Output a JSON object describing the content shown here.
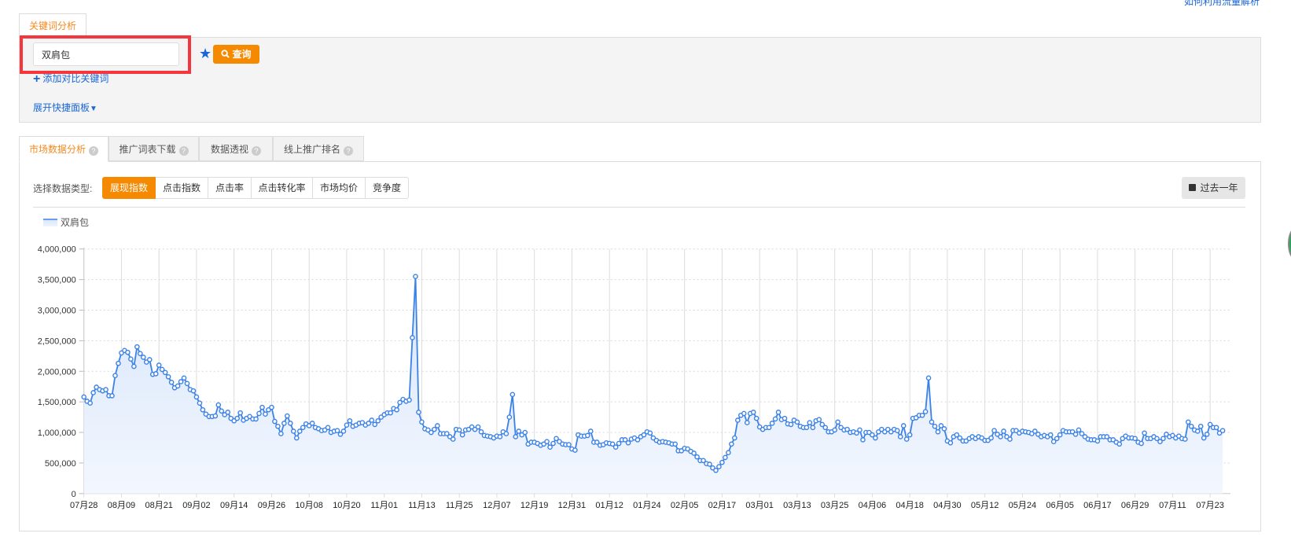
{
  "top_link": "如何利用流量解析",
  "keyword_tab": "关键词分析",
  "search": {
    "value": "双肩包",
    "query_label": "查询",
    "add_compare": "添加对比关键词",
    "expand_panel": "展开快捷面板"
  },
  "tabs": [
    {
      "label": "市场数据分析",
      "active": true
    },
    {
      "label": "推广词表下载",
      "active": false
    },
    {
      "label": "数据透视",
      "active": false
    },
    {
      "label": "线上推广排名",
      "active": false
    }
  ],
  "data_type": {
    "label": "选择数据类型:",
    "options": [
      "展现指数",
      "点击指数",
      "点击率",
      "点击转化率",
      "市场均价",
      "竞争度"
    ],
    "selected": "展现指数"
  },
  "range_button": "过去一年",
  "colors": {
    "accent": "#f58a00",
    "link": "#1a66d6",
    "series": "#3b82e8",
    "highlight_box": "#f5363c"
  },
  "chart_data": {
    "type": "area",
    "legend": [
      "双肩包"
    ],
    "legend_position": "top-left",
    "grid": true,
    "ylim": [
      0,
      4000000
    ],
    "yticks": [
      "0",
      "500,000",
      "1,000,000",
      "1,500,000",
      "2,000,000",
      "2,500,000",
      "3,000,000",
      "3,500,000",
      "4,000,000"
    ],
    "xticks": [
      "07月28",
      "08月09",
      "08月21",
      "09月02",
      "09月14",
      "09月26",
      "10月08",
      "10月20",
      "11月01",
      "11月13",
      "11月25",
      "12月07",
      "12月19",
      "12月31",
      "01月12",
      "01月24",
      "02月05",
      "02月17",
      "03月01",
      "03月13",
      "03月25",
      "04月06",
      "04月18",
      "04月30",
      "05月12",
      "05月24",
      "06月05",
      "06月17",
      "06月29",
      "07月11",
      "07月23"
    ],
    "series": [
      {
        "name": "双肩包",
        "values": [
          1580000,
          1510000,
          1480000,
          1650000,
          1740000,
          1700000,
          1680000,
          1700000,
          1600000,
          1600000,
          1930000,
          2130000,
          2300000,
          2340000,
          2310000,
          2200000,
          2080000,
          2400000,
          2290000,
          2230000,
          2150000,
          2190000,
          1950000,
          1960000,
          2100000,
          2030000,
          1980000,
          1910000,
          1820000,
          1730000,
          1760000,
          1830000,
          1890000,
          1800000,
          1700000,
          1680000,
          1580000,
          1480000,
          1370000,
          1300000,
          1260000,
          1260000,
          1270000,
          1450000,
          1350000,
          1290000,
          1330000,
          1230000,
          1190000,
          1230000,
          1320000,
          1200000,
          1230000,
          1260000,
          1220000,
          1220000,
          1310000,
          1410000,
          1300000,
          1370000,
          1410000,
          1180000,
          1100000,
          980000,
          1150000,
          1270000,
          1150000,
          1020000,
          910000,
          1020000,
          1080000,
          1140000,
          1110000,
          1150000,
          1080000,
          1060000,
          1030000,
          1040000,
          1080000,
          1000000,
          1020000,
          1030000,
          970000,
          1020000,
          1120000,
          1190000,
          1100000,
          1120000,
          1150000,
          1160000,
          1120000,
          1150000,
          1200000,
          1130000,
          1190000,
          1250000,
          1290000,
          1320000,
          1320000,
          1390000,
          1370000,
          1490000,
          1540000,
          1510000,
          1530000,
          2550000,
          3550000,
          1330000,
          1170000,
          1060000,
          1040000,
          1000000,
          1050000,
          1110000,
          980000,
          980000,
          980000,
          930000,
          890000,
          1050000,
          1040000,
          960000,
          1040000,
          1050000,
          1090000,
          1050000,
          1090000,
          1010000,
          950000,
          940000,
          930000,
          910000,
          940000,
          930000,
          1010000,
          980000,
          1250000,
          1620000,
          930000,
          1020000,
          960000,
          1000000,
          810000,
          840000,
          840000,
          820000,
          790000,
          810000,
          850000,
          760000,
          820000,
          900000,
          850000,
          810000,
          800000,
          800000,
          730000,
          710000,
          960000,
          940000,
          940000,
          950000,
          1020000,
          840000,
          840000,
          790000,
          800000,
          830000,
          820000,
          810000,
          760000,
          820000,
          880000,
          880000,
          830000,
          890000,
          910000,
          880000,
          930000,
          960000,
          1010000,
          990000,
          910000,
          870000,
          840000,
          850000,
          840000,
          830000,
          810000,
          810000,
          700000,
          700000,
          740000,
          730000,
          690000,
          660000,
          600000,
          540000,
          540000,
          490000,
          480000,
          420000,
          380000,
          440000,
          510000,
          590000,
          670000,
          810000,
          910000,
          1200000,
          1280000,
          1310000,
          1160000,
          1310000,
          1330000,
          1230000,
          1090000,
          1050000,
          1080000,
          1080000,
          1150000,
          1220000,
          1330000,
          1210000,
          1230000,
          1140000,
          1130000,
          1200000,
          1170000,
          1100000,
          1080000,
          1080000,
          1160000,
          1080000,
          1190000,
          1210000,
          1130000,
          1080000,
          1010000,
          1010000,
          1040000,
          1170000,
          1080000,
          1040000,
          1050000,
          1000000,
          1010000,
          990000,
          1040000,
          880000,
          1000000,
          1000000,
          960000,
          910000,
          1010000,
          1050000,
          1010000,
          1050000,
          1010000,
          1050000,
          1030000,
          930000,
          1110000,
          890000,
          960000,
          1230000,
          1240000,
          1280000,
          1280000,
          1340000,
          1890000,
          1170000,
          1100000,
          1010000,
          1110000,
          1060000,
          860000,
          830000,
          930000,
          960000,
          910000,
          860000,
          860000,
          900000,
          930000,
          900000,
          930000,
          910000,
          870000,
          870000,
          910000,
          1030000,
          970000,
          930000,
          1020000,
          930000,
          890000,
          1030000,
          1030000,
          990000,
          1020000,
          1010000,
          1000000,
          980000,
          1020000,
          970000,
          930000,
          950000,
          930000,
          960000,
          850000,
          900000,
          960000,
          1030000,
          1010000,
          1010000,
          1010000,
          970000,
          1040000,
          980000,
          930000,
          890000,
          880000,
          880000,
          860000,
          930000,
          930000,
          930000,
          880000,
          880000,
          840000,
          810000,
          900000,
          940000,
          910000,
          910000,
          900000,
          840000,
          820000,
          990000,
          900000,
          900000,
          930000,
          900000,
          850000,
          900000,
          970000,
          930000,
          950000,
          910000,
          940000,
          900000,
          890000,
          1170000,
          1100000,
          1040000,
          1020000,
          1100000,
          910000,
          970000,
          1130000,
          1080000,
          1080000,
          990000,
          1030000
        ]
      }
    ]
  }
}
